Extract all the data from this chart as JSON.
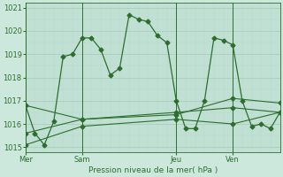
{
  "xlabel": "Pression niveau de la mer( hPa )",
  "background_color": "#cce8dc",
  "plot_bg_color": "#c0e0d4",
  "grid_major_color": "#a8c8bc",
  "grid_minor_color": "#b8d8cc",
  "line_color": "#2d6e2d",
  "ylim": [
    1014.8,
    1021.2
  ],
  "yticks": [
    1015,
    1016,
    1017,
    1018,
    1019,
    1020,
    1021
  ],
  "day_labels": [
    "Mer",
    "Sam",
    "Jeu",
    "Ven"
  ],
  "day_positions": [
    0,
    6,
    16,
    22
  ],
  "vline_positions": [
    0,
    6,
    16,
    22
  ],
  "xlim": [
    0,
    27
  ],
  "series1_x": [
    0,
    1,
    2,
    3,
    4,
    5,
    6,
    7,
    8,
    9,
    10,
    11,
    12,
    13,
    14,
    15,
    16,
    17,
    18,
    19,
    20,
    21,
    22,
    23,
    24,
    25,
    26,
    27
  ],
  "series1_y": [
    1016.8,
    1015.6,
    1015.1,
    1016.1,
    1018.9,
    1019.0,
    1019.7,
    1019.7,
    1019.2,
    1018.1,
    1018.4,
    1020.7,
    1020.5,
    1020.4,
    1019.8,
    1019.5,
    1017.0,
    1015.8,
    1015.8,
    1017.0,
    1019.7,
    1019.6,
    1019.4,
    1017.0,
    1015.9,
    1016.0,
    1015.8,
    1016.5
  ],
  "series2_x": [
    0,
    6,
    16,
    22,
    27
  ],
  "series2_y": [
    1015.6,
    1016.2,
    1016.5,
    1016.7,
    1016.5
  ],
  "series3_x": [
    0,
    6,
    16,
    22,
    27
  ],
  "series3_y": [
    1015.1,
    1015.9,
    1016.2,
    1016.0,
    1016.5
  ],
  "series4_x": [
    0,
    6,
    16,
    22,
    27
  ],
  "series4_y": [
    1016.8,
    1016.2,
    1016.4,
    1017.1,
    1016.9
  ]
}
